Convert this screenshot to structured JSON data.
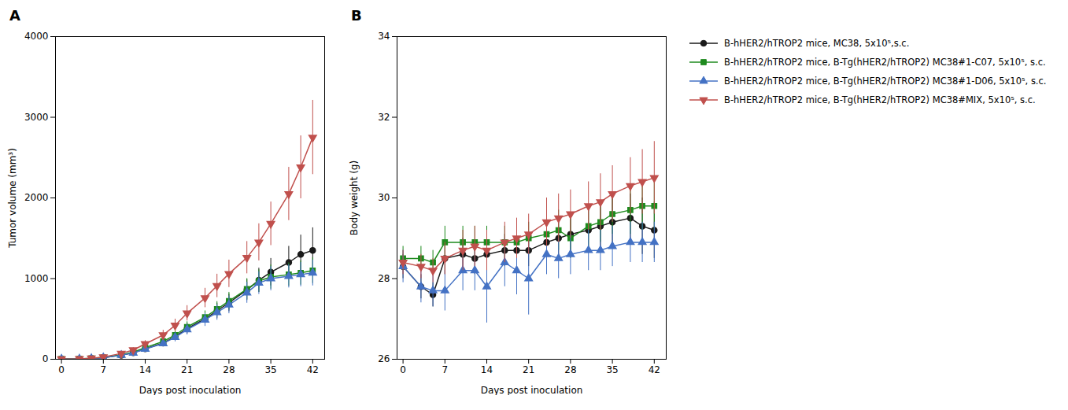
{
  "chart_data": [
    {
      "type": "line",
      "title": "A",
      "xlabel": "Days post inoculation",
      "ylabel": "Tumor volume (mm³)",
      "x": [
        0,
        3,
        5,
        7,
        10,
        12,
        14,
        17,
        19,
        21,
        24,
        26,
        28,
        31,
        33,
        35,
        38,
        40,
        42
      ],
      "xlim": [
        -1,
        44
      ],
      "xticks": [
        0,
        7,
        14,
        21,
        28,
        35,
        42
      ],
      "ylim": [
        0,
        4000
      ],
      "yticks": [
        0,
        1000,
        2000,
        3000,
        4000
      ],
      "grid": false,
      "series": [
        {
          "color": "#1a1a1a",
          "marker": "circle",
          "values": [
            3,
            5,
            10,
            20,
            50,
            80,
            130,
            200,
            280,
            380,
            500,
            600,
            700,
            860,
            980,
            1080,
            1200,
            1300,
            1350
          ],
          "errors": [
            2,
            3,
            5,
            10,
            15,
            20,
            30,
            40,
            55,
            65,
            80,
            95,
            110,
            130,
            150,
            170,
            200,
            240,
            280
          ]
        },
        {
          "color": "#1e8a1e",
          "marker": "square",
          "values": [
            3,
            5,
            12,
            22,
            55,
            88,
            145,
            220,
            300,
            400,
            520,
            620,
            720,
            870,
            970,
            1020,
            1050,
            1070,
            1100
          ],
          "errors": [
            2,
            3,
            5,
            10,
            15,
            20,
            30,
            40,
            55,
            65,
            80,
            95,
            110,
            130,
            140,
            150,
            145,
            150,
            160
          ]
        },
        {
          "color": "#4472c4",
          "marker": "triangle-up",
          "values": [
            3,
            5,
            10,
            20,
            50,
            78,
            126,
            196,
            272,
            368,
            488,
            580,
            675,
            825,
            945,
            1000,
            1030,
            1050,
            1070
          ],
          "errors": [
            2,
            3,
            5,
            10,
            15,
            20,
            30,
            40,
            55,
            65,
            80,
            95,
            110,
            130,
            140,
            150,
            145,
            150,
            160
          ]
        },
        {
          "color": "#c0504d",
          "marker": "triangle-down",
          "values": [
            3,
            6,
            13,
            28,
            72,
            115,
            190,
            300,
            420,
            570,
            760,
            910,
            1060,
            1260,
            1450,
            1680,
            2050,
            2380,
            2750
          ],
          "errors": [
            2,
            3,
            6,
            12,
            20,
            28,
            42,
            60,
            78,
            95,
            120,
            145,
            170,
            200,
            230,
            270,
            330,
            390,
            460
          ]
        }
      ]
    },
    {
      "type": "line",
      "title": "B",
      "xlabel": "Days post inoculation",
      "ylabel": "Body weight (g)",
      "x": [
        0,
        3,
        5,
        7,
        10,
        12,
        14,
        17,
        19,
        21,
        24,
        26,
        28,
        31,
        33,
        35,
        38,
        40,
        42
      ],
      "xlim": [
        -1,
        44
      ],
      "xticks": [
        0,
        7,
        14,
        21,
        28,
        35,
        42
      ],
      "ylim": [
        26,
        34
      ],
      "yticks": [
        26,
        28,
        30,
        32,
        34
      ],
      "grid": false,
      "legend": "right",
      "series": [
        {
          "name": "B-hHER2/hTROP2 mice, MC38, 5x10⁵,s.c.",
          "color": "#1a1a1a",
          "marker": "circle",
          "values": [
            28.3,
            27.8,
            27.6,
            28.5,
            28.6,
            28.5,
            28.6,
            28.7,
            28.7,
            28.7,
            28.9,
            29.0,
            29.1,
            29.2,
            29.3,
            29.4,
            29.5,
            29.3,
            29.2
          ],
          "errors": [
            0.3,
            0.3,
            0.3,
            0.4,
            0.4,
            0.4,
            0.4,
            0.4,
            0.4,
            0.4,
            0.5,
            0.5,
            0.5,
            0.5,
            0.5,
            0.6,
            0.6,
            0.7,
            0.7
          ]
        },
        {
          "name": "B-hHER2/hTROP2 mice, B-Tg(hHER2/hTROP2) MC38#1-C07, 5x10⁵, s.c.",
          "color": "#1e8a1e",
          "marker": "square",
          "values": [
            28.5,
            28.5,
            28.4,
            28.9,
            28.9,
            28.9,
            28.9,
            28.9,
            28.9,
            29.0,
            29.1,
            29.2,
            29.0,
            29.3,
            29.4,
            29.6,
            29.7,
            29.8,
            29.8
          ],
          "errors": [
            0.3,
            0.3,
            0.3,
            0.4,
            0.4,
            0.4,
            0.4,
            0.4,
            0.4,
            0.4,
            0.4,
            0.5,
            0.5,
            0.5,
            0.5,
            0.5,
            0.6,
            0.6,
            0.6
          ]
        },
        {
          "name": "B-hHER2/hTROP2 mice, B-Tg(hHER2/hTROP2) MC38#1-D06, 5x10⁵, s.c.",
          "color": "#4472c4",
          "marker": "triangle-up",
          "values": [
            28.3,
            27.8,
            27.7,
            27.7,
            28.2,
            28.2,
            27.8,
            28.4,
            28.2,
            28.0,
            28.6,
            28.5,
            28.6,
            28.7,
            28.7,
            28.8,
            28.9,
            28.9,
            28.9
          ],
          "errors": [
            0.4,
            0.4,
            0.4,
            0.5,
            0.5,
            0.5,
            0.9,
            0.6,
            0.6,
            0.9,
            0.5,
            0.5,
            0.5,
            0.5,
            0.5,
            0.5,
            0.5,
            0.5,
            0.5
          ]
        },
        {
          "name": "B-hHER2/hTROP2 mice, B-Tg(hHER2/hTROP2) MC38#MIX, 5x10⁵, s.c.",
          "color": "#c0504d",
          "marker": "triangle-down",
          "values": [
            28.4,
            28.3,
            28.2,
            28.5,
            28.7,
            28.8,
            28.7,
            28.9,
            29.0,
            29.1,
            29.4,
            29.5,
            29.6,
            29.8,
            29.9,
            30.1,
            30.3,
            30.4,
            30.5
          ],
          "errors": [
            0.3,
            0.3,
            0.3,
            0.4,
            0.5,
            0.5,
            0.5,
            0.5,
            0.5,
            0.5,
            0.6,
            0.6,
            0.6,
            0.6,
            0.7,
            0.7,
            0.7,
            0.8,
            0.9
          ]
        }
      ]
    }
  ]
}
